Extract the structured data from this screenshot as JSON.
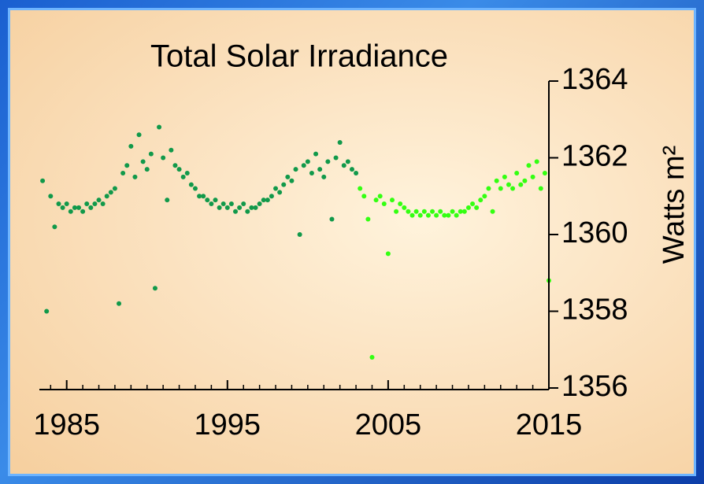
{
  "chart_data": {
    "type": "scatter",
    "title": "Total Solar Irradiance",
    "y_label": "Watts m²",
    "xlim": [
      1983.3,
      2015
    ],
    "xticks": [
      1985,
      1995,
      2005,
      2015
    ],
    "x_minor_ticks": [
      1984,
      1985,
      1986,
      1987,
      1988,
      1989,
      1990,
      1991,
      1992,
      1993,
      1994,
      1995,
      1996,
      1997,
      1998,
      1999,
      2000,
      2001,
      2002,
      2003,
      2004,
      2005,
      2006,
      2007,
      2008,
      2009,
      2010,
      2011,
      2012,
      2013,
      2014,
      2015
    ],
    "ylim": [
      1356,
      1364
    ],
    "yticks": [
      1356,
      1358,
      1360,
      1362,
      1364
    ],
    "series": [
      {
        "color": "#11994a",
        "x": [
          1983.5,
          1983.75,
          1984.0,
          1984.25,
          1984.5,
          1984.75,
          1985.0,
          1985.25,
          1985.5,
          1985.75,
          1986.0,
          1986.25,
          1986.5,
          1986.75,
          1987.0,
          1987.25,
          1987.5,
          1987.75,
          1988.0,
          1988.25,
          1988.5,
          1988.75,
          1989.0,
          1989.25,
          1989.5,
          1989.75,
          1990.0,
          1990.25,
          1990.5,
          1990.75,
          1991.0,
          1991.25,
          1991.5,
          1991.75,
          1992.0,
          1992.25,
          1992.5,
          1992.75,
          1993.0,
          1993.25,
          1993.5,
          1993.75,
          1994.0,
          1994.25,
          1994.5,
          1994.75,
          1995.0,
          1995.25,
          1995.5,
          1995.75,
          1996.0,
          1996.25,
          1996.5,
          1996.75,
          1997.0,
          1997.25,
          1997.5,
          1997.75,
          1998.0,
          1998.25,
          1998.5,
          1998.75,
          1999.0,
          1999.25,
          1999.5,
          1999.75,
          2000.0,
          2000.25,
          2000.5,
          2000.75,
          2001.0,
          2001.25,
          2001.5,
          2001.75,
          2002.0,
          2002.25,
          2002.5,
          2002.75,
          2003.0
        ],
        "values": [
          1361.4,
          1358.0,
          1361.0,
          1360.2,
          1360.8,
          1360.7,
          1360.8,
          1360.6,
          1360.7,
          1360.7,
          1360.6,
          1360.8,
          1360.7,
          1360.8,
          1360.9,
          1360.8,
          1361.0,
          1361.1,
          1361.2,
          1358.2,
          1361.6,
          1361.8,
          1362.3,
          1361.5,
          1362.6,
          1361.9,
          1361.7,
          1362.1,
          1358.6,
          1362.8,
          1362.0,
          1360.9,
          1362.2,
          1361.8,
          1361.7,
          1361.5,
          1361.6,
          1361.3,
          1361.2,
          1361.0,
          1361.0,
          1360.9,
          1360.8,
          1360.9,
          1360.7,
          1360.8,
          1360.7,
          1360.8,
          1360.6,
          1360.7,
          1360.8,
          1360.6,
          1360.7,
          1360.7,
          1360.8,
          1360.9,
          1360.9,
          1361.0,
          1361.2,
          1361.1,
          1361.3,
          1361.5,
          1361.4,
          1361.7,
          1360.0,
          1361.8,
          1361.9,
          1361.6,
          1362.1,
          1361.7,
          1361.5,
          1361.9,
          1360.4,
          1362.0,
          1362.4,
          1361.8,
          1361.9,
          1361.7,
          1361.6
        ]
      },
      {
        "color": "#33ff11",
        "x": [
          2003.25,
          2003.5,
          2003.75,
          2004.0,
          2004.25,
          2004.5,
          2004.75,
          2005.0,
          2005.25,
          2005.5,
          2005.75,
          2006.0,
          2006.25,
          2006.5,
          2006.75,
          2007.0,
          2007.25,
          2007.5,
          2007.75,
          2008.0,
          2008.25,
          2008.5,
          2008.75,
          2009.0,
          2009.25,
          2009.5,
          2009.75,
          2010.0,
          2010.25,
          2010.5,
          2010.75,
          2011.0,
          2011.25,
          2011.5,
          2011.75,
          2012.0,
          2012.25,
          2012.5,
          2012.75,
          2013.0,
          2013.25,
          2013.5,
          2013.75,
          2014.0,
          2014.25,
          2014.5,
          2014.75,
          2015.0
        ],
        "values": [
          1361.2,
          1361.0,
          1360.4,
          1356.8,
          1360.9,
          1361.0,
          1360.8,
          1359.5,
          1360.9,
          1360.6,
          1360.8,
          1360.7,
          1360.6,
          1360.5,
          1360.6,
          1360.5,
          1360.6,
          1360.5,
          1360.6,
          1360.5,
          1360.6,
          1360.5,
          1360.5,
          1360.6,
          1360.5,
          1360.6,
          1360.6,
          1360.7,
          1360.8,
          1360.7,
          1360.9,
          1361.0,
          1361.2,
          1360.6,
          1361.4,
          1361.2,
          1361.5,
          1361.3,
          1361.2,
          1361.6,
          1361.3,
          1361.4,
          1361.8,
          1361.5,
          1361.9,
          1361.2,
          1361.6,
          1358.8
        ]
      }
    ]
  }
}
